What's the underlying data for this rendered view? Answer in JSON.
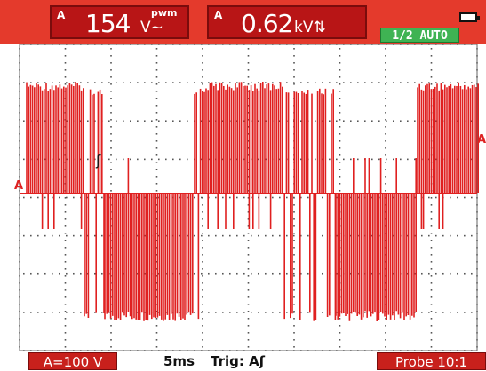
{
  "readouts": [
    {
      "channel": "A",
      "value": "154",
      "unit": "V~",
      "qualifier": "pwm"
    },
    {
      "channel": "A",
      "value": "0.62",
      "unit": "kV",
      "qualifier": ""
    }
  ],
  "status": {
    "mode": "1/2 AUTO",
    "battery_icon": "battery-icon"
  },
  "markers": {
    "left": "A",
    "right": "A",
    "trigger": "ʃ"
  },
  "footer": {
    "range": "A=100 V",
    "timebase": "5ms",
    "trigger": "Trig: Aʃ",
    "probe": "Probe 10:1"
  },
  "colors": {
    "trace": "#e02020",
    "accent": "#e43a2c",
    "badge": "#3fb353"
  }
}
